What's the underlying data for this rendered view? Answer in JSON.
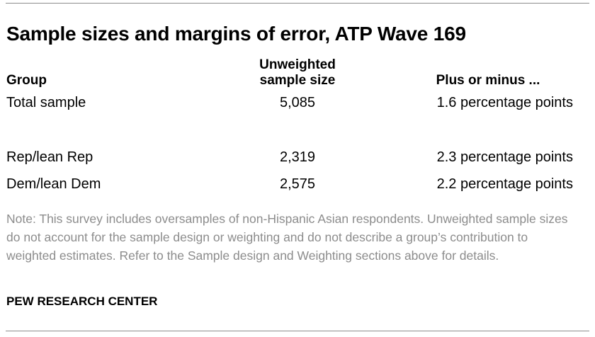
{
  "title": "Sample sizes and margins of error, ATP Wave 169",
  "table": {
    "headers": {
      "group": "Group",
      "sample_size_line1": "Unweighted",
      "sample_size_line2": "sample size",
      "margin": "Plus or minus ..."
    },
    "rows": [
      {
        "group": "Total sample",
        "sample_size": "5,085",
        "margin": "1.6 percentage points"
      },
      {
        "group": "Rep/lean Rep",
        "sample_size": "2,319",
        "margin": "2.3 percentage points"
      },
      {
        "group": "Dem/lean Dem",
        "sample_size": "2,575",
        "margin": "2.2 percentage points"
      }
    ]
  },
  "note": "Note: This survey includes oversamples of non-Hispanic Asian respondents. Unweighted sample sizes do not account for the sample design or weighting and do not describe a group’s contribution to weighted estimates. Refer to the Sample design and Weighting sections above for details.",
  "source": "PEW RESEARCH CENTER"
}
